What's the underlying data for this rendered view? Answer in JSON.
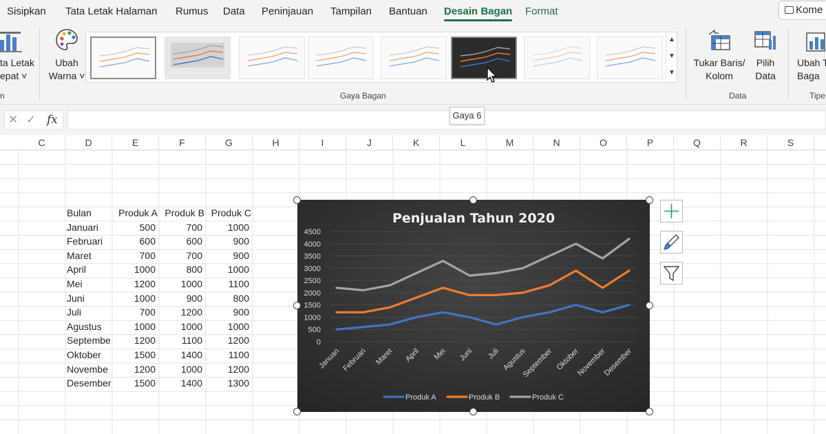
{
  "ribbon": {
    "tabs": [
      "Sisipkan",
      "Tata Letak Halaman",
      "Rumus",
      "Data",
      "Peninjauan",
      "Tampilan",
      "Bantuan",
      "Desain Bagan",
      "Format"
    ],
    "comment_label": "Kome",
    "left_button": {
      "line1": "ta Letak",
      "line2": "epat ˅"
    },
    "left_group_label": "n",
    "ubah_warna": {
      "line1": "Ubah",
      "line2": "Warna ˅"
    },
    "gallery_label": "Gaya Bagan",
    "tukar": {
      "line1": "Tukar Baris/",
      "line2": "Kolom"
    },
    "pilih": {
      "line1": "Pilih",
      "line2": "Data"
    },
    "data_group_label": "Data",
    "ubah_tipe": {
      "line1": "Ubah T",
      "line2": "Baga"
    },
    "tipe_group_label": "Tipe"
  },
  "tooltip": "Gaya 6",
  "formula": {
    "fx": "fx",
    "cancel": "✕",
    "enter": "✓",
    "value": ""
  },
  "columns": [
    "C",
    "D",
    "E",
    "F",
    "G",
    "H",
    "I",
    "J",
    "K",
    "L",
    "M",
    "N",
    "O",
    "P",
    "Q",
    "R",
    "S"
  ],
  "table": {
    "headers": [
      "Bulan",
      "Produk A",
      "Produk B",
      "Produk C"
    ],
    "rows": [
      [
        "Januari",
        "500",
        "700",
        "1000"
      ],
      [
        "Februari",
        "600",
        "600",
        "900"
      ],
      [
        "Maret",
        "700",
        "700",
        "900"
      ],
      [
        "April",
        "1000",
        "800",
        "1000"
      ],
      [
        "Mei",
        "1200",
        "1000",
        "1100"
      ],
      [
        "Juni",
        "1000",
        "900",
        "800"
      ],
      [
        "Juli",
        "700",
        "1200",
        "900"
      ],
      [
        "Agustus",
        "1000",
        "1000",
        "1000"
      ],
      [
        "Septembe",
        "1200",
        "1100",
        "1200"
      ],
      [
        "Oktober",
        "1500",
        "1400",
        "1100"
      ],
      [
        "Novembe",
        "1200",
        "1000",
        "1200"
      ],
      [
        "Desember",
        "1500",
        "1400",
        "1300"
      ]
    ]
  },
  "chart_data": {
    "type": "line",
    "title": "Penjualan Tahun 2020",
    "categories": [
      "Januari",
      "Februari",
      "Maret",
      "April",
      "Mei",
      "Juni",
      "Juli",
      "Agustus",
      "September",
      "Oktober",
      "November",
      "Desember"
    ],
    "series": [
      {
        "name": "Produk A",
        "values": [
          500,
          600,
          700,
          1000,
          1200,
          1000,
          700,
          1000,
          1200,
          1500,
          1200,
          1500
        ],
        "color": "#4472c4"
      },
      {
        "name": "Produk B",
        "values": [
          1200,
          1200,
          1400,
          1800,
          2200,
          1900,
          1900,
          2000,
          2300,
          2900,
          2200,
          2900
        ],
        "color": "#ed7d31"
      },
      {
        "name": "Produk C",
        "values": [
          2200,
          2100,
          2300,
          2800,
          3300,
          2700,
          2800,
          3000,
          3500,
          4000,
          3400,
          4200
        ],
        "color": "#a5a5a5"
      }
    ],
    "yticks": [
      "0",
      "500",
      "1000",
      "1500",
      "2000",
      "2500",
      "3000",
      "3500",
      "4000",
      "4500"
    ],
    "ylim": [
      0,
      4500
    ],
    "legend": "bottom",
    "grid": true,
    "background": "#2e2e2e"
  }
}
